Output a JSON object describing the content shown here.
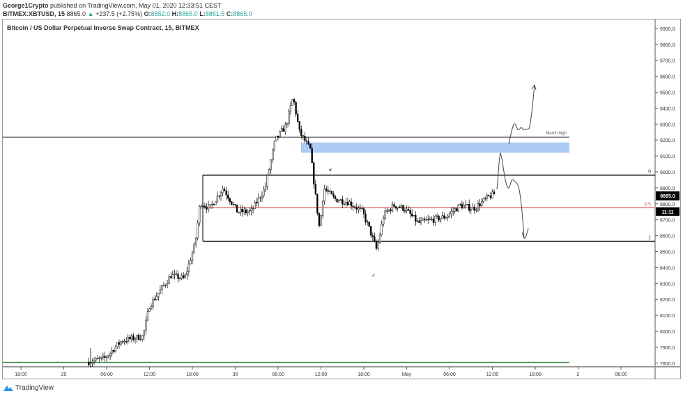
{
  "header": {
    "author": "George1Crypto",
    "published": "published on TradingView.com, May 01, 2020 12:33:51 CEST",
    "symbol": "BITMEX:XBTUSD, 15",
    "last": "8865.0",
    "change": "+237.5 (+2.75%)",
    "o_label": "O:",
    "o": "8852.0",
    "h_label": "H:",
    "h": "8865.0",
    "l_label": "L:",
    "l": "8851.5",
    "c_label": "C:",
    "c": "8865.0"
  },
  "chart_title": "Bitcoin / US Dollar Perpetual Inverse Swap Contract, 15, BITMEX",
  "price_label": "8865.0",
  "countdown": "11:11",
  "annotations": {
    "march_high": "March high",
    "fib_0": "0",
    "fib_05": "0.5",
    "fib_1": "1",
    "x_mark": "×",
    "check_mark": "✓"
  },
  "colors": {
    "up": "#ffffff",
    "down": "#000000",
    "fib_mid": "#e57373",
    "zone": "#aecbf5",
    "support": "#2e7d32",
    "change": "#26a69a"
  },
  "footer": {
    "brand": "TradingView"
  },
  "chart_data": {
    "type": "candlestick",
    "y_ticks": [
      7800,
      7900,
      8000,
      8100,
      8200,
      8300,
      8400,
      8500,
      8600,
      8700,
      8800,
      8900,
      9000,
      9100,
      9200,
      9300,
      9400,
      9500,
      9600,
      9700,
      9800,
      9900
    ],
    "ylim": [
      7780,
      9940
    ],
    "x_ticks": [
      "18:00",
      "29",
      "06:00",
      "12:00",
      "18:00",
      "30",
      "06:00",
      "12:00",
      "18:00",
      "May",
      "06:00",
      "12:00",
      "18:00",
      "2",
      "06:00"
    ],
    "x_unit": "hours since Apr 28 18:00",
    "path": [
      [
        9.5,
        7808
      ],
      [
        11.7,
        7830
      ],
      [
        14.1,
        7940
      ],
      [
        17.1,
        7970
      ],
      [
        18,
        8160
      ],
      [
        21,
        8350
      ],
      [
        22.9,
        8330
      ],
      [
        24.4,
        8550
      ],
      [
        25.1,
        8810
      ],
      [
        26.4,
        8770
      ],
      [
        28.3,
        8900
      ],
      [
        30.3,
        8750
      ],
      [
        32.2,
        8750
      ],
      [
        34.2,
        8900
      ],
      [
        35.6,
        9200
      ],
      [
        37.1,
        9290
      ],
      [
        38.1,
        9470
      ],
      [
        39,
        9250
      ],
      [
        40.5,
        9140
      ],
      [
        41,
        8940
      ],
      [
        41.8,
        8640
      ],
      [
        42.4,
        8900
      ],
      [
        43.9,
        8830
      ],
      [
        45.9,
        8810
      ],
      [
        47.8,
        8750
      ],
      [
        48.8,
        8640
      ],
      [
        49.8,
        8510
      ],
      [
        50.8,
        8730
      ],
      [
        52.2,
        8790
      ],
      [
        53.7,
        8770
      ],
      [
        55.6,
        8680
      ],
      [
        57.6,
        8700
      ],
      [
        59.5,
        8720
      ],
      [
        61.5,
        8790
      ],
      [
        63.4,
        8770
      ],
      [
        65.4,
        8840
      ],
      [
        66.4,
        8865
      ]
    ],
    "levels": {
      "march_high": 9218,
      "zone_top": 9185,
      "zone_bottom": 9120,
      "fib_0": 8980,
      "fib_05": 8775,
      "fib_1": 8565,
      "support": 7805
    }
  }
}
